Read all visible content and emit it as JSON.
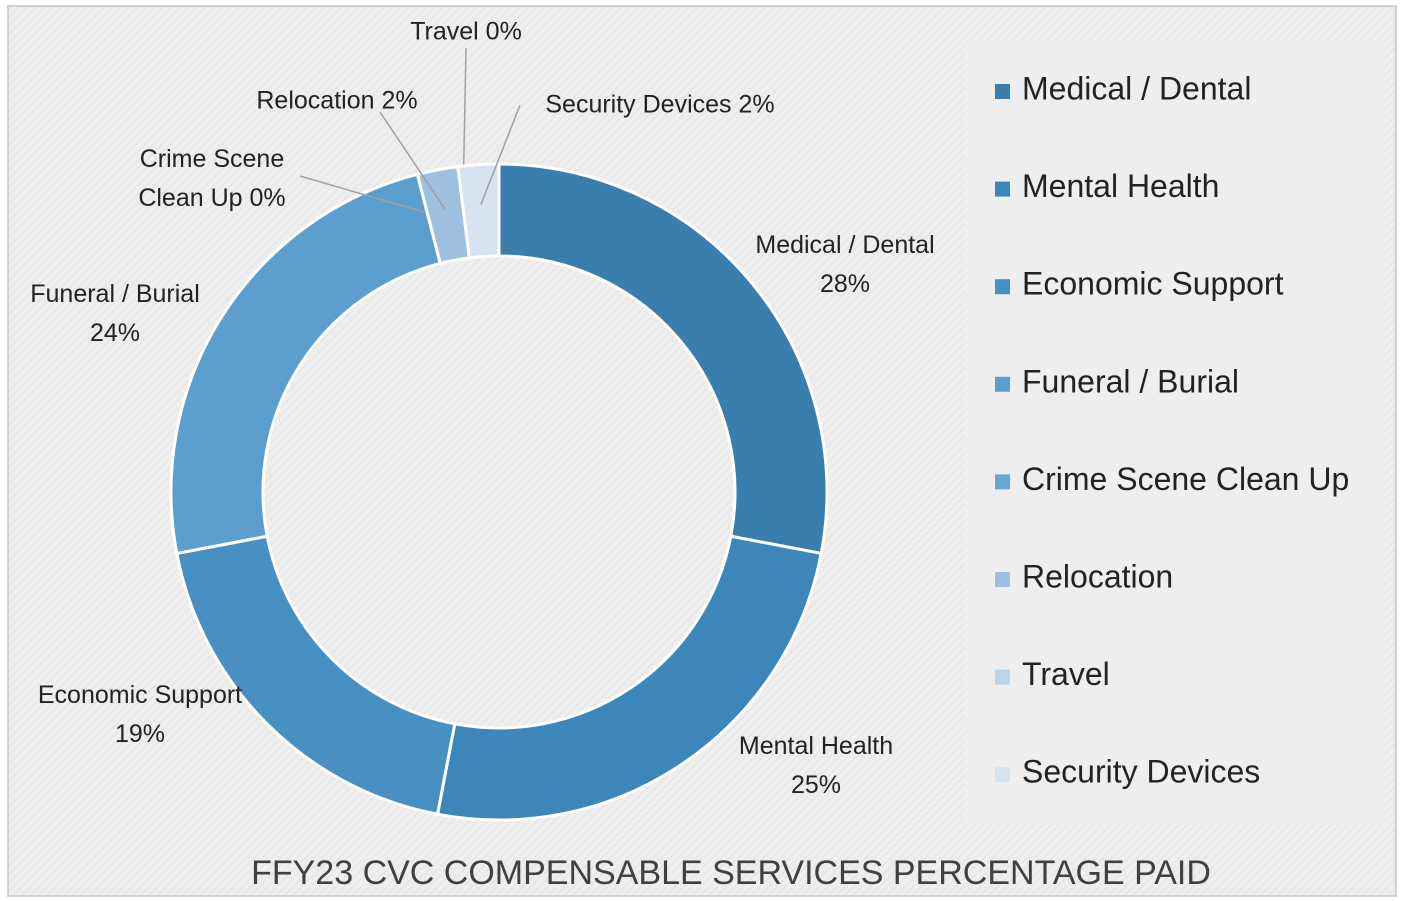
{
  "chart_data": {
    "type": "donut",
    "title": "FFY23 CVC COMPENSABLE SERVICES PERCENTAGE PAID",
    "categories": [
      "Medical / Dental",
      "Mental Health",
      "Economic Support",
      "Funeral / Burial",
      "Crime Scene Clean Up",
      "Relocation",
      "Travel",
      "Security Devices"
    ],
    "values": [
      28,
      25,
      19,
      24,
      0,
      2,
      0,
      2
    ],
    "value_labels": [
      "28%",
      "25%",
      "19%",
      "24%",
      "0%",
      "2%",
      "0%",
      "2%"
    ],
    "colors": [
      "#3a7eae",
      "#3d86b9",
      "#4890c2",
      "#5c9fcf",
      "#6aa6d2",
      "#9dbfe0",
      "#bcd3ea",
      "#d6e3f1"
    ],
    "legend": "right"
  }
}
